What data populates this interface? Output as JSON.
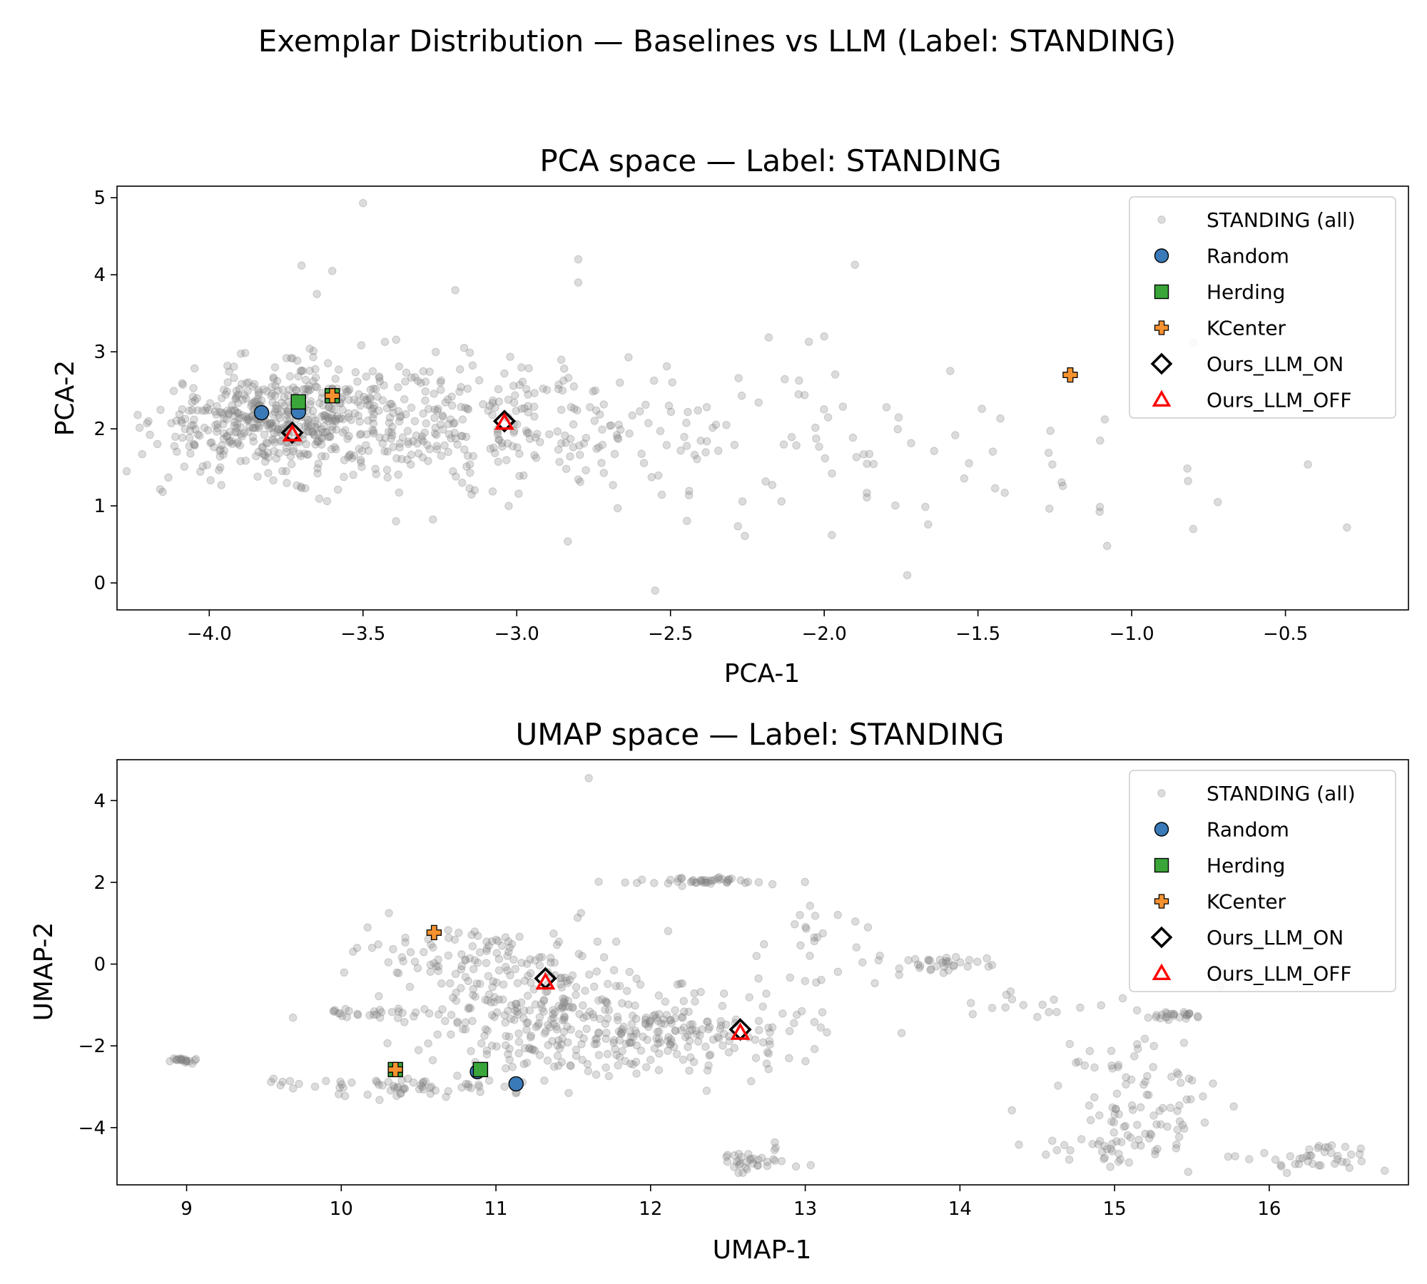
{
  "figure_title": "Exemplar Distribution — Baselines vs LLM (Label: STANDING)",
  "colors": {
    "background_points": "#808080",
    "random": "#3a7ab8",
    "herding": "#3aa63a",
    "kcenter": "#f5922f",
    "ours_on": "#000000",
    "ours_off": "#ff0000"
  },
  "legend_labels": [
    "STANDING (all)",
    "Random",
    "Herding",
    "KCenter",
    "Ours_LLM_ON",
    "Ours_LLM_OFF"
  ],
  "chart_data": [
    {
      "type": "scatter",
      "title": "PCA space — Label: STANDING",
      "xlabel": "PCA-1",
      "ylabel": "PCA-2",
      "xlim": [
        -4.3,
        -0.1
      ],
      "ylim": [
        -0.35,
        5.15
      ],
      "xticks": [
        -4.0,
        -3.5,
        -3.0,
        -2.5,
        -2.0,
        -1.5,
        -1.0,
        -0.5
      ],
      "xtick_labels": [
        "−4.0",
        "−3.5",
        "−3.0",
        "−2.5",
        "−2.0",
        "−1.5",
        "−1.0",
        "−0.5"
      ],
      "yticks": [
        0,
        1,
        2,
        3,
        4,
        5
      ],
      "ytick_labels": [
        "0",
        "1",
        "2",
        "3",
        "4",
        "5"
      ],
      "legend_position": "top-right",
      "series": [
        {
          "name": "STANDING (all)",
          "marker": "circle-faint",
          "clusters": [
            {
              "cx": -3.8,
              "cy": 2.1,
              "sx": 0.18,
              "sy": 0.32,
              "n": 420
            },
            {
              "cx": -3.4,
              "cy": 2.15,
              "sx": 0.25,
              "sy": 0.45,
              "n": 220
            },
            {
              "cx": -2.9,
              "cy": 2.05,
              "sx": 0.25,
              "sy": 0.45,
              "n": 130
            },
            {
              "cx": -2.35,
              "cy": 1.85,
              "sx": 0.3,
              "sy": 0.5,
              "n": 60
            },
            {
              "cx": -1.75,
              "cy": 1.7,
              "sx": 0.3,
              "sy": 0.55,
              "n": 30
            },
            {
              "cx": -1.05,
              "cy": 1.4,
              "sx": 0.25,
              "sy": 0.6,
              "n": 12
            }
          ],
          "outliers": [
            [
              -3.5,
              4.93
            ],
            [
              -3.7,
              4.12
            ],
            [
              -2.8,
              4.2
            ],
            [
              -1.9,
              4.13
            ],
            [
              -2.55,
              -0.1
            ],
            [
              -1.73,
              0.1
            ],
            [
              -0.3,
              0.72
            ],
            [
              -1.08,
              0.48
            ],
            [
              -0.8,
              0.7
            ],
            [
              -0.72,
              1.05
            ],
            [
              -0.8,
              3.12
            ],
            [
              -2.05,
              3.13
            ],
            [
              -2.0,
              3.2
            ],
            [
              -3.6,
              4.05
            ],
            [
              -3.65,
              3.75
            ],
            [
              -3.2,
              3.8
            ],
            [
              -2.8,
              3.9
            ]
          ]
        },
        {
          "name": "Random",
          "marker": "circle",
          "points": [
            [
              -3.83,
              2.21
            ],
            [
              -3.71,
              2.22
            ]
          ]
        },
        {
          "name": "Herding",
          "marker": "square",
          "points": [
            [
              -3.71,
              2.35
            ],
            [
              -3.6,
              2.43
            ]
          ]
        },
        {
          "name": "KCenter",
          "marker": "plus",
          "points": [
            [
              -3.6,
              2.43
            ],
            [
              -1.2,
              2.7
            ]
          ]
        },
        {
          "name": "Ours_LLM_ON",
          "marker": "diamond",
          "points": [
            [
              -3.73,
              1.95
            ],
            [
              -3.04,
              2.1
            ]
          ]
        },
        {
          "name": "Ours_LLM_OFF",
          "marker": "triangle",
          "points": [
            [
              -3.73,
              1.93
            ],
            [
              -3.04,
              2.08
            ]
          ]
        }
      ]
    },
    {
      "type": "scatter",
      "title": "UMAP space — Label: STANDING",
      "xlabel": "UMAP-1",
      "ylabel": "UMAP-2",
      "xlim": [
        8.55,
        16.9
      ],
      "ylim": [
        -5.4,
        5.0
      ],
      "xticks": [
        9,
        10,
        11,
        12,
        13,
        14,
        15,
        16
      ],
      "xtick_labels": [
        "9",
        "10",
        "11",
        "12",
        "13",
        "14",
        "15",
        "16"
      ],
      "yticks": [
        -4,
        -2,
        0,
        2,
        4
      ],
      "ytick_labels": [
        "−4",
        "−2",
        "0",
        "2",
        "4"
      ],
      "legend_position": "top-right",
      "series": [
        {
          "name": "STANDING (all)",
          "marker": "circle-faint",
          "clusters": [
            {
              "cx": 11.3,
              "cy": -1.2,
              "sx": 0.4,
              "sy": 0.8,
              "n": 260
            },
            {
              "cx": 12.2,
              "cy": -1.7,
              "sx": 0.45,
              "sy": 0.5,
              "n": 180
            },
            {
              "cx": 10.7,
              "cy": 0.3,
              "sx": 0.3,
              "sy": 0.35,
              "n": 70
            },
            {
              "cx": 10.4,
              "cy": -3.0,
              "sx": 0.35,
              "sy": 0.12,
              "n": 60
            },
            {
              "cx": 12.3,
              "cy": 2.05,
              "sx": 0.25,
              "sy": 0.05,
              "n": 45
            },
            {
              "cx": 12.7,
              "cy": -4.8,
              "sx": 0.15,
              "sy": 0.15,
              "n": 35
            },
            {
              "cx": 13.0,
              "cy": 0.5,
              "sx": 0.2,
              "sy": 0.5,
              "n": 25
            },
            {
              "cx": 10.2,
              "cy": -1.2,
              "sx": 0.2,
              "sy": 0.05,
              "n": 25
            },
            {
              "cx": 8.98,
              "cy": -2.35,
              "sx": 0.05,
              "sy": 0.03,
              "n": 20
            },
            {
              "cx": 13.9,
              "cy": 0.0,
              "sx": 0.25,
              "sy": 0.1,
              "n": 35
            },
            {
              "cx": 15.15,
              "cy": -3.2,
              "sx": 0.25,
              "sy": 1.0,
              "n": 90
            },
            {
              "cx": 16.3,
              "cy": -4.7,
              "sx": 0.25,
              "sy": 0.2,
              "n": 40
            },
            {
              "cx": 15.4,
              "cy": -1.25,
              "sx": 0.1,
              "sy": 0.05,
              "n": 25
            },
            {
              "cx": 14.9,
              "cy": -4.5,
              "sx": 0.2,
              "sy": 0.15,
              "n": 25
            },
            {
              "cx": 14.5,
              "cy": -1.0,
              "sx": 0.25,
              "sy": 0.15,
              "n": 15
            }
          ],
          "outliers": [
            [
              11.6,
              4.55
            ],
            [
              11.55,
              1.25
            ],
            [
              13.1,
              -1.55
            ],
            [
              14.3,
              -0.75
            ],
            [
              16.5,
              -4.85
            ]
          ]
        },
        {
          "name": "Random",
          "marker": "circle",
          "points": [
            [
              11.13,
              -2.93
            ],
            [
              10.88,
              -2.63
            ]
          ]
        },
        {
          "name": "Herding",
          "marker": "square",
          "points": [
            [
              10.9,
              -2.58
            ],
            [
              10.35,
              -2.58
            ]
          ]
        },
        {
          "name": "KCenter",
          "marker": "plus",
          "points": [
            [
              10.35,
              -2.58
            ],
            [
              10.6,
              0.77
            ]
          ]
        },
        {
          "name": "Ours_LLM_ON",
          "marker": "diamond",
          "points": [
            [
              11.32,
              -0.35
            ],
            [
              12.58,
              -1.6
            ]
          ]
        },
        {
          "name": "Ours_LLM_OFF",
          "marker": "triangle",
          "points": [
            [
              11.32,
              -0.45
            ],
            [
              12.58,
              -1.68
            ]
          ]
        }
      ]
    }
  ]
}
